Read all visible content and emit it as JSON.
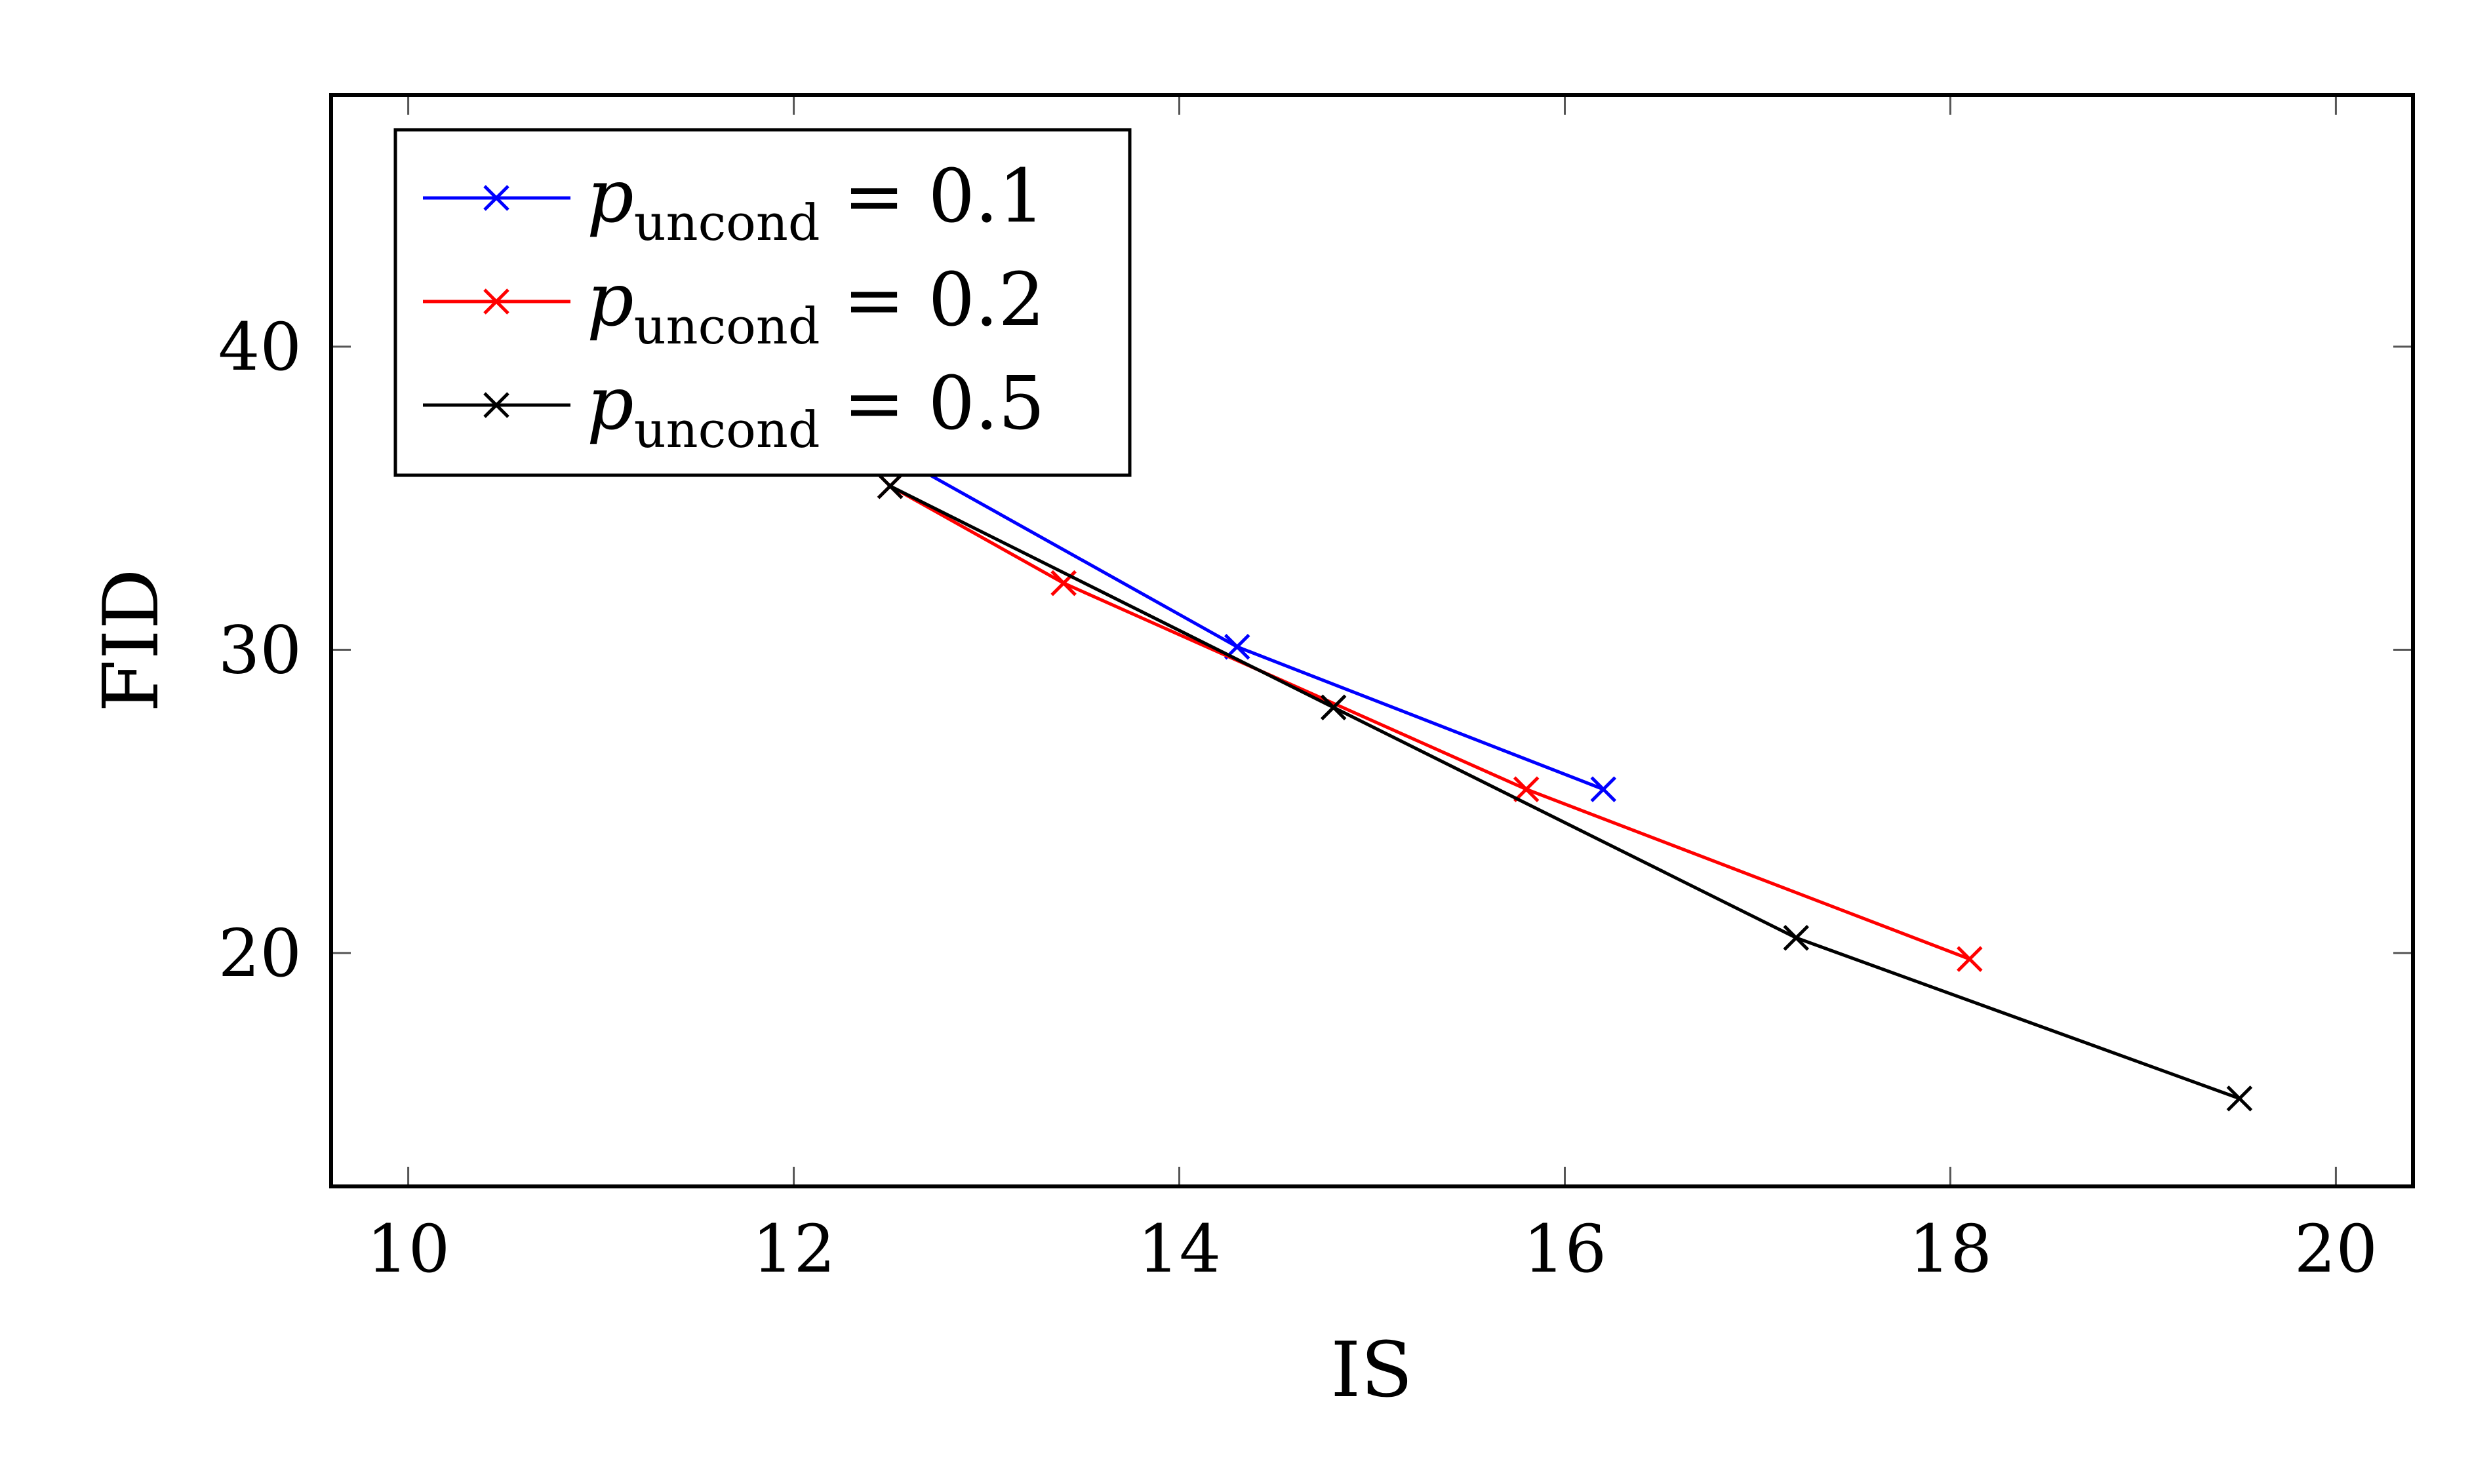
{
  "chart_data": {
    "type": "line",
    "title": "",
    "xlabel": "IS",
    "ylabel": "FID",
    "xlim": [
      9.6,
      20.4
    ],
    "ylim": [
      12.3,
      48.3
    ],
    "xticks": [
      10,
      12,
      14,
      16,
      18,
      20
    ],
    "yticks": [
      20,
      30,
      40
    ],
    "grid": false,
    "legend_position": "top-left",
    "marker": "x",
    "series": [
      {
        "name_base": "p",
        "name_sub": "uncond",
        "name_rest": " = 0.1",
        "color": "#0000ff",
        "points": [
          [
            12.5,
            36.5
          ],
          [
            14.3,
            30.1
          ],
          [
            16.2,
            25.4
          ]
        ]
      },
      {
        "name_base": "p",
        "name_sub": "uncond",
        "name_rest": " = 0.2",
        "color": "#ff0000",
        "points": [
          [
            12.5,
            35.4
          ],
          [
            13.4,
            32.2
          ],
          [
            15.8,
            25.4
          ],
          [
            18.1,
            19.8
          ]
        ]
      },
      {
        "name_base": "p",
        "name_sub": "uncond",
        "name_rest": " = 0.5",
        "color": "#000000",
        "points": [
          [
            12.5,
            35.4
          ],
          [
            14.8,
            28.1
          ],
          [
            17.2,
            20.5
          ],
          [
            19.5,
            15.2
          ]
        ]
      }
    ]
  }
}
